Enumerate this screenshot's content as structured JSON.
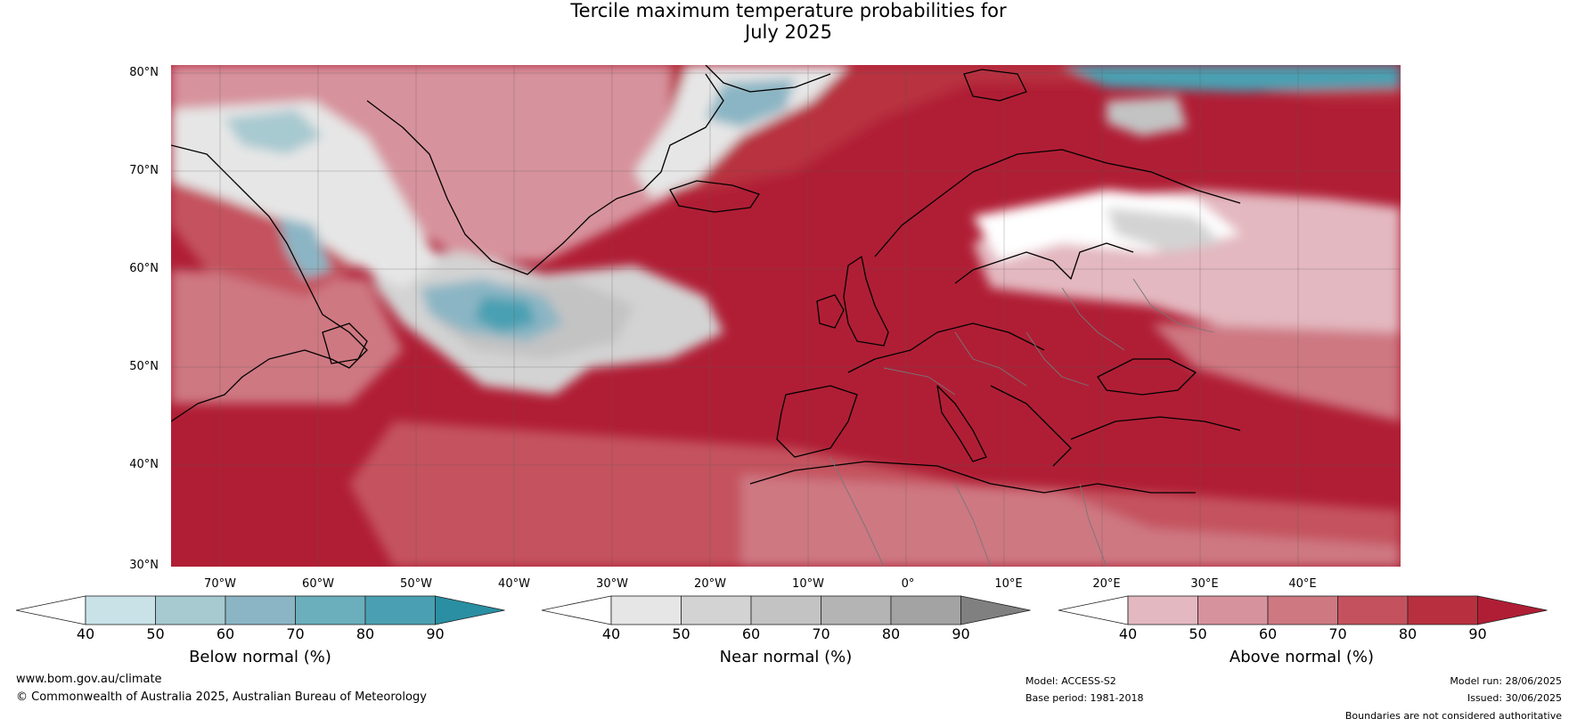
{
  "title_line1": "Tercile maximum temperature probabilities for",
  "title_line2": "July 2025",
  "lat_labels": [
    "80°N",
    "70°N",
    "60°N",
    "50°N",
    "40°N",
    "30°N"
  ],
  "lon_labels": [
    "70°W",
    "60°W",
    "50°W",
    "40°W",
    "30°W",
    "20°W",
    "10°W",
    "0°",
    "10°E",
    "20°E",
    "30°E",
    "40°E"
  ],
  "colorbars": [
    {
      "label": "Below normal (%)",
      "ticks": [
        "40",
        "50",
        "60",
        "70",
        "80",
        "90"
      ],
      "colors": [
        "#ffffff",
        "#c9e2e8",
        "#a7c9d0",
        "#8bb5c4",
        "#6aafbb",
        "#4aa0b2",
        "#2a8fa3"
      ]
    },
    {
      "label": "Near normal (%)",
      "ticks": [
        "40",
        "50",
        "60",
        "70",
        "80",
        "90"
      ],
      "colors": [
        "#ffffff",
        "#e6e6e6",
        "#d3d3d3",
        "#c3c3c3",
        "#b4b4b4",
        "#a3a3a3",
        "#808080"
      ]
    },
    {
      "label": "Above normal (%)",
      "ticks": [
        "40",
        "50",
        "60",
        "70",
        "80",
        "90"
      ],
      "colors": [
        "#ffffff",
        "#e3b8c0",
        "#d7939d",
        "#ce7882",
        "#c4525e",
        "#b8303f",
        "#b01e35"
      ]
    }
  ],
  "footer": {
    "website": "www.bom.gov.au/climate",
    "copyright": "© Commonwealth of Australia 2025, Australian Bureau of Meteorology",
    "model": "Model: ACCESS-S2",
    "base_period": "Base period: 1981-2018",
    "model_run": "Model run: 28/06/2025",
    "issued": "Issued: 30/06/2025",
    "disclaimer": "Boundaries are not considered authoritative"
  }
}
